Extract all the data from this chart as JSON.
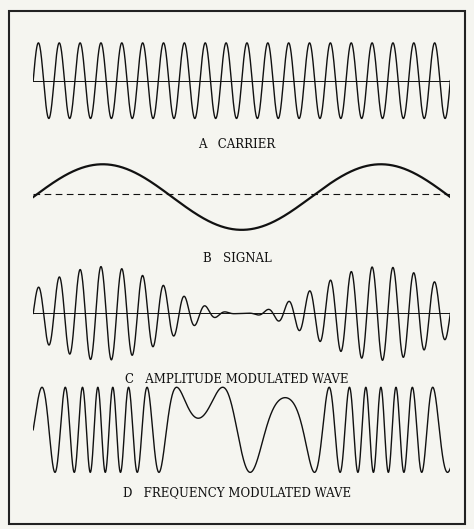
{
  "fig_width": 4.74,
  "fig_height": 5.29,
  "dpi": 100,
  "background_color": "#f5f5f0",
  "border_color": "#222222",
  "line_color": "#111111",
  "carrier_freq": 20,
  "carrier_amp": 0.85,
  "signal_freq": 1.5,
  "signal_amp": 0.85,
  "am_carrier_freq": 20,
  "fm_base_freq": 10,
  "fm_delta_freq": 18,
  "labels": [
    "A   CARRIER",
    "B   SIGNAL",
    "C   AMPLITUDE MODULATED WAVE",
    "D   FREQUENCY MODULATED WAVE"
  ],
  "label_fontsize": 8.5,
  "label_font": "serif"
}
